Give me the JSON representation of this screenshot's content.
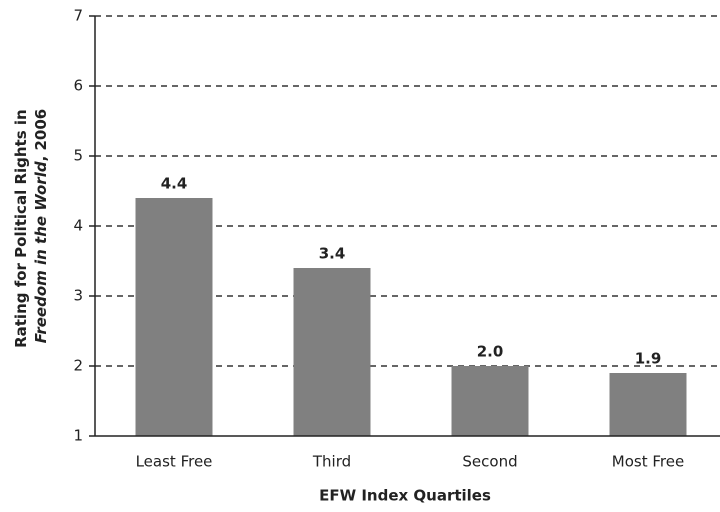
{
  "chart_data": {
    "type": "bar",
    "categories": [
      "Least Free",
      "Third",
      "Second",
      "Most Free"
    ],
    "values": [
      4.4,
      3.4,
      2.0,
      1.9
    ],
    "value_labels": [
      "4.4",
      "3.4",
      "2.0",
      "1.9"
    ],
    "color": "#808080",
    "xlabel": "EFW Index Quartiles",
    "ylabel": [
      "Rating for Political Rights in",
      "Freedom in the World",
      ", 2006"
    ],
    "ylim": [
      1,
      7
    ],
    "yticks": [
      1,
      2,
      3,
      4,
      5,
      6,
      7
    ],
    "grid": true
  }
}
